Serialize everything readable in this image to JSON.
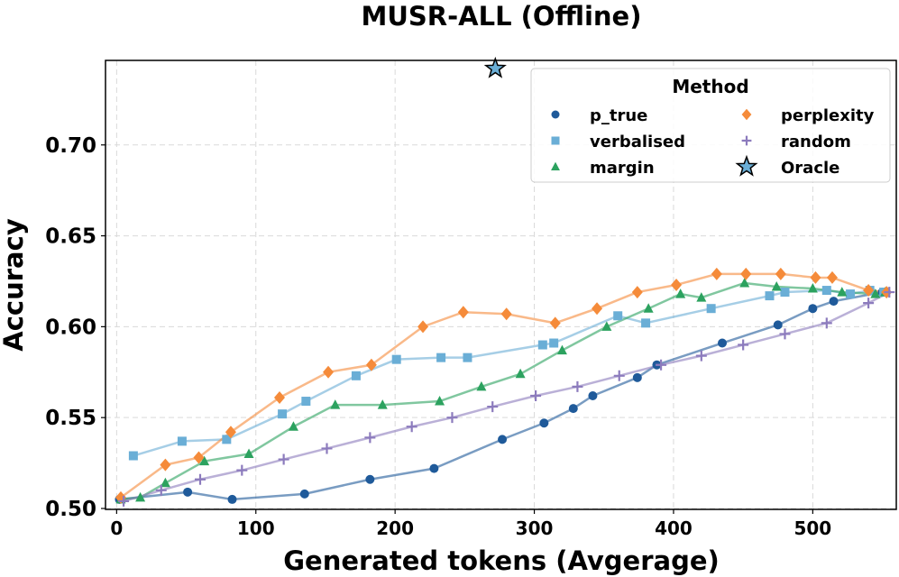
{
  "chart_data": {
    "type": "line",
    "title": "MUSR-ALL (Offline)",
    "xlabel": "Generated tokens (Avgerage)",
    "ylabel": "Accuracy",
    "xlim": [
      -8,
      560
    ],
    "ylim": [
      0.4995,
      0.7465
    ],
    "xticks": [
      0,
      100,
      200,
      300,
      400,
      500
    ],
    "yticks": [
      0.5,
      0.55,
      0.6,
      0.65,
      0.7
    ],
    "xtick_labels": [
      "0",
      "100",
      "200",
      "300",
      "400",
      "500"
    ],
    "ytick_labels": [
      "0.50",
      "0.55",
      "0.60",
      "0.65",
      "0.70"
    ],
    "grid": true,
    "legend": {
      "title": "Method",
      "placement": "top-right",
      "columns": 2
    },
    "series": [
      {
        "name": "p_true",
        "color": "#1f5a9a",
        "marker": "circle",
        "x": [
          2,
          51,
          83,
          135,
          182,
          228,
          277,
          307,
          328,
          342,
          374,
          388,
          435,
          475,
          500,
          515,
          550
        ],
        "y": [
          0.505,
          0.509,
          0.505,
          0.508,
          0.516,
          0.522,
          0.538,
          0.547,
          0.555,
          0.562,
          0.572,
          0.579,
          0.591,
          0.601,
          0.61,
          0.614,
          0.619
        ]
      },
      {
        "name": "verbalised",
        "color": "#6aaed6",
        "marker": "square",
        "x": [
          12,
          47,
          79,
          119,
          136,
          172,
          201,
          233,
          252,
          306,
          314,
          360,
          380,
          427,
          469,
          480,
          510,
          527,
          541,
          551
        ],
        "y": [
          0.529,
          0.537,
          0.538,
          0.552,
          0.559,
          0.573,
          0.582,
          0.583,
          0.583,
          0.59,
          0.591,
          0.606,
          0.602,
          0.61,
          0.617,
          0.619,
          0.62,
          0.618,
          0.62,
          0.619
        ]
      },
      {
        "name": "margin",
        "color": "#2ca25f",
        "marker": "triangle",
        "x": [
          3,
          17,
          35,
          63,
          95,
          127,
          157,
          191,
          232,
          262,
          290,
          320,
          352,
          382,
          405,
          420,
          451,
          474,
          500,
          521,
          545,
          552
        ],
        "y": [
          0.505,
          0.506,
          0.514,
          0.526,
          0.53,
          0.545,
          0.557,
          0.557,
          0.559,
          0.567,
          0.574,
          0.587,
          0.6,
          0.61,
          0.618,
          0.616,
          0.624,
          0.622,
          0.621,
          0.619,
          0.618,
          0.619
        ]
      },
      {
        "name": "perplexity",
        "color": "#f58b3a",
        "marker": "diamond",
        "x": [
          3,
          35,
          59,
          82,
          117,
          152,
          183,
          220,
          249,
          280,
          315,
          345,
          374,
          402,
          431,
          452,
          477,
          502,
          514,
          540,
          553
        ],
        "y": [
          0.506,
          0.524,
          0.528,
          0.542,
          0.561,
          0.575,
          0.579,
          0.6,
          0.608,
          0.607,
          0.602,
          0.61,
          0.619,
          0.623,
          0.629,
          0.629,
          0.629,
          0.627,
          0.627,
          0.62,
          0.619
        ]
      },
      {
        "name": "random",
        "color": "#8c7bbd",
        "marker": "plus",
        "x": [
          5,
          32,
          60,
          90,
          120,
          151,
          182,
          212,
          241,
          270,
          301,
          331,
          361,
          391,
          420,
          450,
          480,
          510,
          540,
          555
        ],
        "y": [
          0.504,
          0.51,
          0.516,
          0.521,
          0.527,
          0.533,
          0.539,
          0.545,
          0.55,
          0.556,
          0.562,
          0.567,
          0.573,
          0.579,
          0.584,
          0.59,
          0.596,
          0.602,
          0.613,
          0.619
        ]
      }
    ],
    "oracle": {
      "name": "Oracle",
      "color": "#6aaed6",
      "marker": "star",
      "x": 272,
      "y": 0.742
    }
  }
}
